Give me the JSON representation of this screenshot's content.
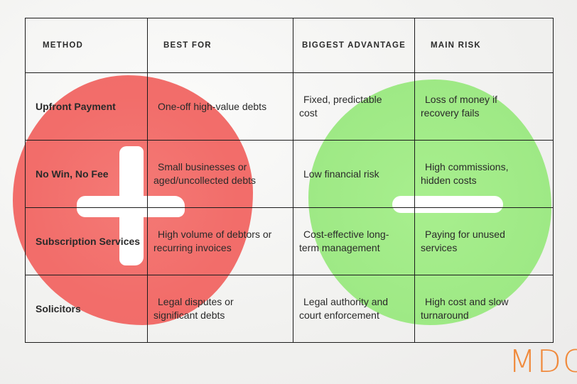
{
  "table": {
    "headers": [
      "Method",
      "Best For",
      "Biggest Advantage",
      "Main Risk"
    ],
    "rows": [
      {
        "method": "Upfront Payment",
        "best_for": [
          "One-off high-value debts"
        ],
        "advantage": [
          "Fixed, predictable",
          "cost"
        ],
        "risk": [
          "Loss of money if",
          "recovery fails"
        ]
      },
      {
        "method": "No Win, No Fee",
        "best_for": [
          "Small businesses or",
          "aged/uncollected debts"
        ],
        "advantage": [
          "Low financial risk"
        ],
        "risk": [
          "High commissions,",
          "hidden costs"
        ]
      },
      {
        "method": "Subscription Services",
        "best_for": [
          "High volume of debtors or",
          "recurring invoices"
        ],
        "advantage": [
          "Cost-effective long-",
          "term management"
        ],
        "risk": [
          "Paying for unused",
          "services"
        ]
      },
      {
        "method": "Solicitors",
        "best_for": [
          "Legal disputes or",
          "significant debts"
        ],
        "advantage": [
          "Legal authority and",
          "court enforcement"
        ],
        "risk": [
          "High cost and slow",
          "turnaround"
        ]
      }
    ]
  },
  "logo": "MDC",
  "colors": {
    "pros_blob": "#f26d6a",
    "cons_blob": "#9ee985",
    "logo": "#f08a3c"
  },
  "icons": [
    "plus-icon",
    "minus-icon"
  ]
}
